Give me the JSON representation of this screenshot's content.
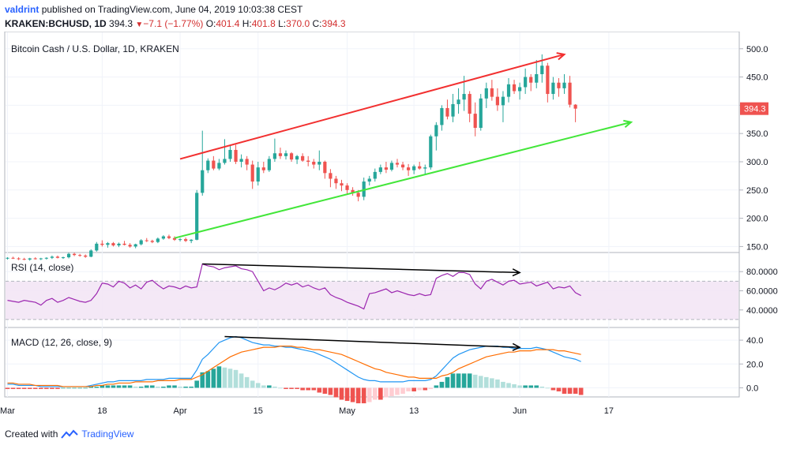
{
  "header": {
    "user": "valdrint",
    "published": "published on TradingView.com, June 04, 2019 10:03:38 CEST",
    "symbol": "KRAKEN:BCHUSD, 1D",
    "last": "394.3",
    "change": "−7.1 (−1.77%)",
    "ohlc": {
      "o_label": "O:",
      "o": "401.4",
      "h_label": "H:",
      "h": "401.8",
      "l_label": "L:",
      "l": "370.0",
      "c_label": "C:",
      "c": "394.3"
    }
  },
  "footer": {
    "created_with": "Created with",
    "brand": "TradingView"
  },
  "colors": {
    "up": "#26a69a",
    "down": "#ef5350",
    "rsi": "#9c27b0",
    "macd": "#2196f3",
    "signal": "#ff6d00",
    "red_line": "#f23030",
    "green_line": "#43e63a",
    "price_tag": "#ef5350"
  },
  "chart_data": [
    {
      "type": "candlestick",
      "title": "Bitcoin Cash / U.S. Dollar, 1D, KRAKEN",
      "price_label": "394.3",
      "x_ticks": [
        "Mar",
        "18",
        "Apr",
        "15",
        "May",
        "13",
        "Jun",
        "17"
      ],
      "x_tick_dates": [
        "2019-03-01",
        "2019-03-18",
        "2019-04-01",
        "2019-04-15",
        "2019-05-01",
        "2019-05-13",
        "2019-06-01",
        "2019-06-17"
      ],
      "y_ticks": [
        "150.0",
        "200.0",
        "250.0",
        "300.0",
        "350.0",
        "400.0",
        "450.0",
        "500.0"
      ],
      "ylim": [
        145,
        522
      ],
      "start_date": "2019-03-01",
      "candles": [
        [
          129,
          131,
          127,
          130
        ],
        [
          130,
          132,
          128,
          129
        ],
        [
          129,
          131,
          126,
          128
        ],
        [
          128,
          130,
          126,
          127
        ],
        [
          127,
          130,
          125,
          129
        ],
        [
          129,
          131,
          127,
          128
        ],
        [
          128,
          130,
          126,
          129
        ],
        [
          129,
          131,
          127,
          130
        ],
        [
          130,
          134,
          128,
          132
        ],
        [
          132,
          134,
          129,
          130
        ],
        [
          130,
          132,
          128,
          131
        ],
        [
          131,
          139,
          129,
          137
        ],
        [
          137,
          139,
          133,
          135
        ],
        [
          135,
          137,
          132,
          134
        ],
        [
          134,
          136,
          130,
          132
        ],
        [
          132,
          145,
          131,
          143
        ],
        [
          143,
          158,
          141,
          155
        ],
        [
          155,
          161,
          150,
          153
        ],
        [
          153,
          158,
          148,
          156
        ],
        [
          156,
          158,
          150,
          152
        ],
        [
          152,
          157,
          149,
          155
        ],
        [
          155,
          160,
          152,
          153
        ],
        [
          153,
          156,
          148,
          150
        ],
        [
          150,
          155,
          147,
          154
        ],
        [
          154,
          163,
          152,
          161
        ],
        [
          161,
          165,
          158,
          160
        ],
        [
          160,
          162,
          156,
          158
        ],
        [
          158,
          166,
          156,
          164
        ],
        [
          164,
          170,
          162,
          168
        ],
        [
          168,
          171,
          163,
          165
        ],
        [
          165,
          168,
          160,
          162
        ],
        [
          162,
          165,
          159,
          163
        ],
        [
          163,
          166,
          158,
          160
        ],
        [
          160,
          163,
          156,
          162
        ],
        [
          162,
          250,
          161,
          245
        ],
        [
          245,
          355,
          240,
          285
        ],
        [
          285,
          306,
          280,
          302
        ],
        [
          302,
          310,
          285,
          288
        ],
        [
          288,
          305,
          285,
          298
        ],
        [
          298,
          340,
          295,
          305
        ],
        [
          305,
          330,
          300,
          321
        ],
        [
          321,
          330,
          296,
          300
        ],
        [
          300,
          313,
          290,
          305
        ],
        [
          305,
          310,
          285,
          295
        ],
        [
          295,
          302,
          252,
          265
        ],
        [
          265,
          300,
          258,
          290
        ],
        [
          290,
          300,
          280,
          285
        ],
        [
          285,
          310,
          282,
          305
        ],
        [
          305,
          341,
          300,
          315
        ],
        [
          315,
          325,
          305,
          310
        ],
        [
          310,
          320,
          304,
          315
        ],
        [
          315,
          317,
          300,
          304
        ],
        [
          304,
          312,
          296,
          310
        ],
        [
          310,
          315,
          300,
          302
        ],
        [
          302,
          310,
          292,
          300
        ],
        [
          300,
          305,
          288,
          295
        ],
        [
          295,
          320,
          285,
          300
        ],
        [
          300,
          302,
          270,
          280
        ],
        [
          280,
          287,
          255,
          270
        ],
        [
          270,
          275,
          252,
          262
        ],
        [
          262,
          268,
          248,
          258
        ],
        [
          258,
          262,
          242,
          250
        ],
        [
          250,
          255,
          240,
          245
        ],
        [
          245,
          250,
          230,
          238
        ],
        [
          238,
          272,
          232,
          265
        ],
        [
          265,
          275,
          258,
          270
        ],
        [
          270,
          288,
          265,
          282
        ],
        [
          282,
          295,
          278,
          290
        ],
        [
          290,
          300,
          280,
          286
        ],
        [
          286,
          302,
          283,
          298
        ],
        [
          298,
          305,
          290,
          295
        ],
        [
          295,
          300,
          285,
          290
        ],
        [
          290,
          296,
          275,
          285
        ],
        [
          285,
          295,
          278,
          292
        ],
        [
          292,
          300,
          286,
          288
        ],
        [
          288,
          295,
          278,
          290
        ],
        [
          290,
          348,
          286,
          345
        ],
        [
          345,
          370,
          320,
          365
        ],
        [
          365,
          400,
          355,
          395
        ],
        [
          395,
          410,
          375,
          380
        ],
        [
          380,
          420,
          370,
          402
        ],
        [
          402,
          430,
          385,
          410
        ],
        [
          410,
          452,
          390,
          420
        ],
        [
          420,
          425,
          370,
          385
        ],
        [
          385,
          405,
          345,
          360
        ],
        [
          360,
          420,
          355,
          412
        ],
        [
          412,
          440,
          395,
          430
        ],
        [
          430,
          445,
          408,
          415
        ],
        [
          415,
          430,
          390,
          400
        ],
        [
          400,
          425,
          370,
          415
        ],
        [
          415,
          448,
          405,
          437
        ],
        [
          437,
          445,
          420,
          425
        ],
        [
          425,
          440,
          410,
          432
        ],
        [
          432,
          465,
          420,
          450
        ],
        [
          450,
          455,
          425,
          440
        ],
        [
          440,
          480,
          430,
          455
        ],
        [
          455,
          490,
          440,
          470
        ],
        [
          470,
          475,
          405,
          420
        ],
        [
          420,
          450,
          410,
          440
        ],
        [
          440,
          448,
          415,
          430
        ],
        [
          430,
          455,
          420,
          440
        ],
        [
          440,
          452,
          396,
          401
        ],
        [
          401,
          402,
          370,
          394
        ]
      ],
      "series": [
        {
          "name": "",
          "type": "trendline",
          "points": [
            [
              "2019-04-01",
              305
            ],
            [
              "2019-06-09",
              490
            ]
          ]
        },
        {
          "name": "",
          "type": "trendline",
          "points": [
            [
              "2019-03-31",
              165
            ],
            [
              "2019-06-21",
              370
            ]
          ]
        }
      ]
    },
    {
      "type": "line",
      "title": "RSI (14, close)",
      "y_ticks": [
        "40.0000",
        "60.0000",
        "80.0000"
      ],
      "ylim": [
        25,
        95
      ],
      "band": [
        30,
        70
      ],
      "series": [
        {
          "name": "",
          "values": [
            50,
            49,
            48,
            50,
            49,
            48,
            45,
            50,
            52,
            48,
            50,
            53,
            51,
            49,
            48,
            50,
            57,
            68,
            67,
            64,
            70,
            68,
            63,
            66,
            62,
            69,
            71,
            66,
            62,
            65,
            64,
            62,
            65,
            63,
            64,
            88,
            86,
            85,
            82,
            84,
            85,
            86,
            83,
            82,
            80,
            70,
            60,
            63,
            61,
            64,
            68,
            66,
            68,
            64,
            66,
            63,
            61,
            63,
            56,
            53,
            51,
            48,
            46,
            44,
            41,
            57,
            58,
            60,
            62,
            58,
            60,
            58,
            56,
            55,
            57,
            55,
            56,
            73,
            76,
            78,
            75,
            79,
            79,
            77,
            67,
            62,
            70,
            72,
            69,
            66,
            70,
            71,
            67,
            68,
            69,
            65,
            67,
            69,
            62,
            64,
            63,
            65,
            58,
            55
          ]
        }
      ],
      "trendline": [
        [
          "2019-04-05",
          88
        ],
        [
          "2019-06-01",
          79
        ]
      ]
    },
    {
      "type": "line",
      "title": "MACD (12, 26, close, 9)",
      "y_ticks": [
        "0.0",
        "20.0",
        "40.0"
      ],
      "ylim": [
        -5,
        48
      ],
      "series": [
        {
          "name": "",
          "values": [
            3,
            3,
            2,
            2,
            2,
            2,
            1,
            1,
            1,
            1,
            1,
            1,
            1,
            1,
            1,
            2,
            3,
            4,
            5,
            5,
            6,
            6,
            6,
            6,
            6,
            7,
            7,
            7,
            7,
            8,
            8,
            8,
            8,
            8,
            15,
            24,
            28,
            33,
            38,
            40,
            42,
            43,
            42,
            40,
            38,
            37,
            36,
            36,
            35,
            35,
            34,
            34,
            33,
            32,
            31,
            30,
            28,
            26,
            24,
            21,
            18,
            15,
            12,
            9,
            7,
            6,
            6,
            5,
            5,
            5,
            5,
            5,
            6,
            6,
            6,
            6,
            7,
            10,
            15,
            20,
            25,
            28,
            30,
            32,
            33,
            34,
            35,
            35,
            35,
            34,
            34,
            33,
            33,
            33,
            33,
            34,
            33,
            32,
            30,
            28,
            26,
            25,
            24,
            22
          ]
        },
        {
          "name": "",
          "values": [
            4,
            4,
            3,
            3,
            3,
            2,
            2,
            2,
            2,
            2,
            1,
            1,
            1,
            1,
            1,
            1,
            2,
            2,
            3,
            3,
            4,
            4,
            4,
            5,
            5,
            5,
            5,
            6,
            6,
            6,
            6,
            7,
            7,
            7,
            9,
            11,
            14,
            17,
            20,
            23,
            26,
            28,
            30,
            31,
            32,
            33,
            34,
            34,
            34,
            35,
            35,
            35,
            34,
            34,
            33,
            32,
            32,
            31,
            30,
            29,
            28,
            26,
            24,
            22,
            20,
            18,
            16,
            15,
            13,
            12,
            11,
            10,
            9,
            9,
            8,
            8,
            8,
            8,
            10,
            11,
            13,
            16,
            18,
            20,
            22,
            24,
            26,
            27,
            28,
            29,
            30,
            30,
            31,
            31,
            31,
            32,
            32,
            32,
            32,
            31,
            31,
            30,
            29,
            28
          ]
        },
        {
          "name": "",
          "values": [
            -1,
            -1,
            -1,
            -1,
            -1,
            -1,
            -1,
            -1,
            -1,
            -1,
            0,
            0,
            0,
            0,
            0,
            1,
            1,
            2,
            2,
            2,
            2,
            2,
            2,
            1,
            1,
            2,
            2,
            1,
            1,
            2,
            2,
            1,
            1,
            1,
            6,
            13,
            14,
            16,
            18,
            17,
            16,
            15,
            12,
            9,
            6,
            4,
            2,
            2,
            1,
            0,
            -1,
            -1,
            -1,
            -2,
            -2,
            -2,
            -4,
            -5,
            -6,
            -8,
            -10,
            -11,
            -12,
            -13,
            -13,
            -12,
            -10,
            -10,
            -8,
            -7,
            -6,
            -5,
            -3,
            -3,
            -2,
            -2,
            -1,
            2,
            5,
            9,
            12,
            12,
            12,
            12,
            11,
            10,
            9,
            8,
            7,
            5,
            4,
            3,
            2,
            2,
            2,
            2,
            1,
            0,
            -2,
            -3,
            -5,
            -5,
            -5,
            -6
          ]
        }
      ],
      "trendline": [
        [
          "2019-04-09",
          43
        ],
        [
          "2019-06-01",
          34
        ]
      ]
    }
  ]
}
